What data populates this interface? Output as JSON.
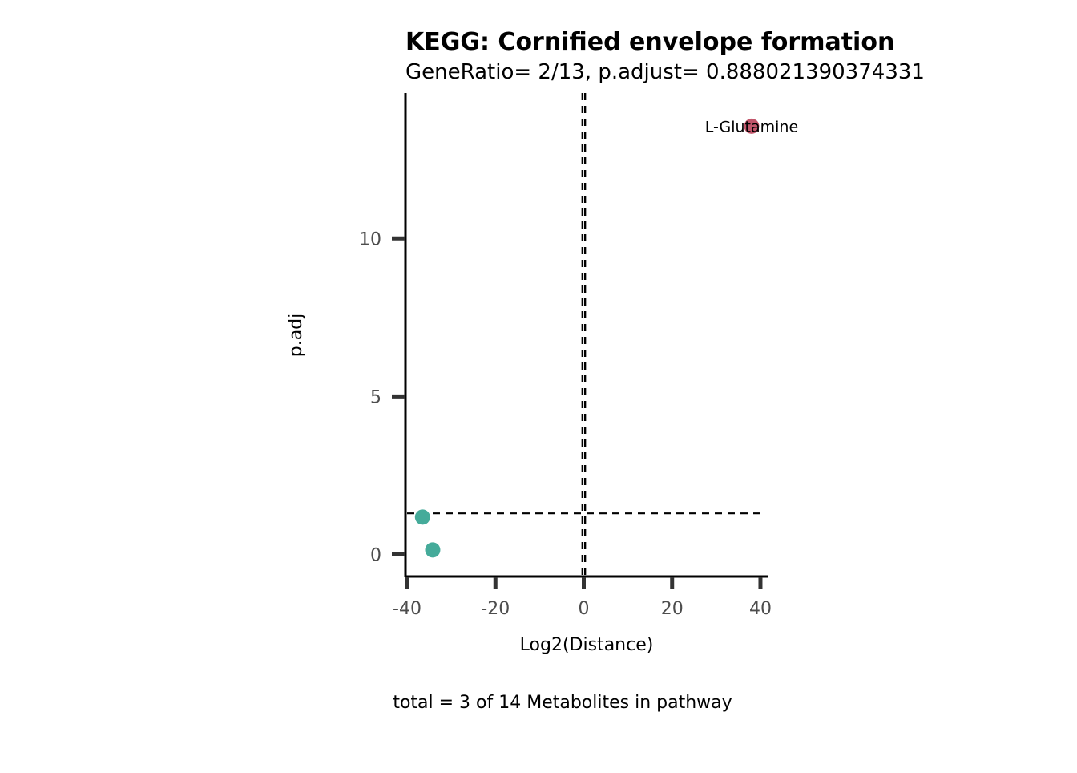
{
  "chart_data": {
    "type": "scatter",
    "title": "KEGG: Cornified envelope formation",
    "subtitle": "GeneRatio= 2/13, p.adjust= 0.888021390374331",
    "xlabel": "Log2(Distance)",
    "ylabel": "p.adj",
    "caption": "total = 3 of 14 Metabolites in pathway",
    "xlim": [
      -40,
      42
    ],
    "ylim": [
      -0.7,
      14.6
    ],
    "x_ticks": [
      -40,
      -20,
      0,
      20,
      40
    ],
    "x_tick_labels": [
      "-40",
      "-20",
      "0",
      "20",
      "40"
    ],
    "y_ticks": [
      0,
      5,
      10
    ],
    "y_tick_labels": [
      "0",
      "5",
      "10"
    ],
    "reference_lines": {
      "horizontal_y": 1.3,
      "vertical_x": [
        -0.3,
        0.3
      ]
    },
    "points": [
      {
        "x": -36.5,
        "y": 1.18,
        "color": "#45ab9a",
        "label": ""
      },
      {
        "x": -34.2,
        "y": 0.14,
        "color": "#45ab9a",
        "label": ""
      },
      {
        "x": 38.0,
        "y": 13.55,
        "color": "#c2566b",
        "label": "L-Glutamine"
      }
    ],
    "grid": false,
    "legend": "none"
  }
}
